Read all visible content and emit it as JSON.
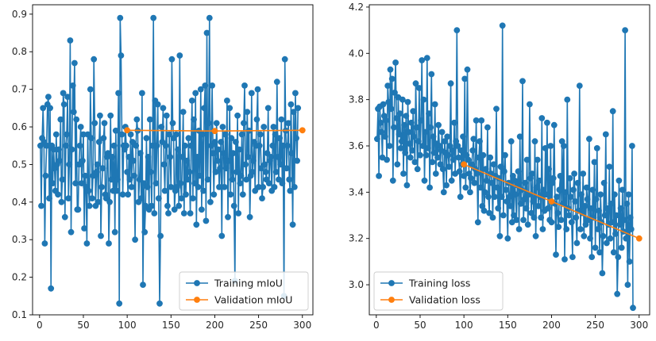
{
  "chart_data": [
    {
      "type": "line",
      "xlim": [
        -8,
        312
      ],
      "ylim": [
        0.1,
        0.925
      ],
      "xticks": [
        0,
        50,
        100,
        150,
        200,
        250,
        300
      ],
      "yticks": [
        0.1,
        0.2,
        0.3,
        0.4,
        0.5,
        0.6,
        0.7,
        0.8,
        0.9
      ],
      "ytick_decimals": 1,
      "grid": false,
      "legend_position": "lower-right",
      "series": [
        {
          "name": "Training mIoU",
          "color": "#1f77b4",
          "marker": "circle",
          "x_start": 1,
          "x_step": 1,
          "values": [
            0.55,
            0.39,
            0.57,
            0.65,
            0.56,
            0.29,
            0.47,
            0.55,
            0.66,
            0.68,
            0.41,
            0.65,
            0.17,
            0.55,
            0.45,
            0.54,
            0.49,
            0.43,
            0.58,
            0.5,
            0.42,
            0.54,
            0.51,
            0.62,
            0.4,
            0.46,
            0.69,
            0.66,
            0.36,
            0.55,
            0.58,
            0.68,
            0.41,
            0.5,
            0.83,
            0.32,
            0.54,
            0.71,
            0.64,
            0.77,
            0.45,
            0.62,
            0.38,
            0.38,
            0.5,
            0.55,
            0.6,
            0.45,
            0.51,
            0.58,
            0.33,
            0.47,
            0.44,
            0.29,
            0.58,
            0.43,
            0.39,
            0.7,
            0.57,
            0.41,
            0.47,
            0.78,
            0.61,
            0.39,
            0.48,
            0.5,
            0.4,
            0.56,
            0.63,
            0.31,
            0.44,
            0.49,
            0.57,
            0.61,
            0.42,
            0.41,
            0.52,
            0.53,
            0.29,
            0.4,
            0.63,
            0.46,
            0.52,
            0.43,
            0.55,
            0.32,
            0.59,
            0.43,
            0.46,
            0.69,
            0.13,
            0.89,
            0.79,
            0.58,
            0.42,
            0.55,
            0.54,
            0.6,
            0.55,
            0.48,
            0.42,
            0.52,
            0.46,
            0.58,
            0.44,
            0.56,
            0.51,
            0.47,
            0.3,
            0.55,
            0.62,
            0.59,
            0.4,
            0.46,
            0.53,
            0.41,
            0.69,
            0.18,
            0.45,
            0.32,
            0.39,
            0.57,
            0.44,
            0.52,
            0.38,
            0.62,
            0.48,
            0.39,
            0.55,
            0.89,
            0.37,
            0.67,
            0.45,
            0.55,
            0.66,
            0.41,
            0.13,
            0.31,
            0.6,
            0.56,
            0.65,
            0.5,
            0.43,
            0.55,
            0.63,
            0.39,
            0.37,
            0.58,
            0.52,
            0.44,
            0.78,
            0.61,
            0.57,
            0.38,
            0.43,
            0.58,
            0.44,
            0.54,
            0.39,
            0.79,
            0.45,
            0.41,
            0.52,
            0.64,
            0.37,
            0.55,
            0.42,
            0.51,
            0.46,
            0.57,
            0.48,
            0.37,
            0.55,
            0.67,
            0.41,
            0.62,
            0.45,
            0.69,
            0.34,
            0.52,
            0.44,
            0.59,
            0.47,
            0.7,
            0.38,
            0.58,
            0.43,
            0.65,
            0.71,
            0.35,
            0.85,
            0.46,
            0.61,
            0.89,
            0.4,
            0.55,
            0.71,
            0.53,
            0.42,
            0.56,
            0.48,
            0.61,
            0.51,
            0.54,
            0.44,
            0.49,
            0.56,
            0.31,
            0.6,
            0.53,
            0.44,
            0.58,
            0.49,
            0.67,
            0.36,
            0.51,
            0.65,
            0.42,
            0.57,
            0.46,
            0.53,
            0.39,
            0.19,
            0.56,
            0.48,
            0.63,
            0.37,
            0.54,
            0.45,
            0.47,
            0.58,
            0.42,
            0.61,
            0.71,
            0.5,
            0.46,
            0.64,
            0.52,
            0.59,
            0.36,
            0.47,
            0.69,
            0.48,
            0.51,
            0.56,
            0.43,
            0.55,
            0.62,
            0.7,
            0.44,
            0.55,
            0.58,
            0.49,
            0.41,
            0.44,
            0.6,
            0.5,
            0.48,
            0.46,
            0.53,
            0.65,
            0.45,
            0.51,
            0.52,
            0.43,
            0.55,
            0.6,
            0.44,
            0.58,
            0.48,
            0.72,
            0.52,
            0.46,
            0.57,
            0.5,
            0.62,
            0.45,
            0.55,
            0.15,
            0.78,
            0.59,
            0.49,
            0.55,
            0.61,
            0.46,
            0.43,
            0.66,
            0.53,
            0.34,
            0.64,
            0.44,
            0.69,
            0.57,
            0.51,
            0.65
          ]
        },
        {
          "name": "Validation mIoU",
          "color": "#ff7f0e",
          "marker": "circle",
          "x": [
            100,
            200,
            300
          ],
          "values": [
            0.591,
            0.589,
            0.591
          ]
        }
      ]
    },
    {
      "type": "line",
      "xlim": [
        -8,
        312
      ],
      "ylim": [
        2.87,
        4.21
      ],
      "xticks": [
        0,
        50,
        100,
        150,
        200,
        250,
        300
      ],
      "yticks": [
        3.0,
        3.2,
        3.4,
        3.6,
        3.8,
        4.0,
        4.2
      ],
      "ytick_decimals": 1,
      "grid": false,
      "legend_position": "lower-left",
      "series": [
        {
          "name": "Training loss",
          "color": "#1f77b4",
          "marker": "circle",
          "x_start": 1,
          "x_step": 1,
          "values": [
            3.63,
            3.76,
            3.47,
            3.77,
            3.7,
            3.66,
            3.55,
            3.78,
            3.73,
            3.64,
            3.71,
            3.54,
            3.86,
            3.79,
            3.6,
            3.93,
            3.76,
            3.89,
            3.45,
            3.68,
            3.83,
            3.96,
            3.72,
            3.52,
            3.81,
            3.65,
            3.74,
            3.59,
            3.62,
            3.8,
            3.48,
            3.69,
            3.57,
            3.73,
            3.43,
            3.79,
            3.66,
            3.61,
            3.55,
            3.7,
            3.58,
            3.75,
            3.64,
            3.53,
            3.87,
            3.68,
            3.5,
            3.62,
            3.85,
            3.56,
            3.71,
            3.97,
            3.6,
            3.8,
            3.45,
            3.66,
            3.56,
            3.98,
            3.59,
            3.74,
            3.42,
            3.68,
            3.91,
            3.53,
            3.64,
            3.57,
            3.78,
            3.48,
            3.61,
            3.55,
            3.69,
            3.6,
            3.52,
            3.58,
            3.66,
            3.5,
            3.4,
            3.62,
            3.57,
            3.43,
            3.64,
            3.56,
            3.51,
            3.6,
            3.87,
            3.45,
            3.58,
            3.54,
            3.7,
            3.48,
            3.62,
            4.1,
            3.6,
            3.55,
            3.49,
            3.38,
            3.58,
            3.52,
            3.64,
            3.47,
            3.89,
            3.42,
            3.56,
            3.93,
            3.54,
            3.48,
            3.4,
            3.46,
            3.52,
            3.58,
            3.63,
            3.44,
            3.5,
            3.71,
            3.48,
            3.27,
            3.55,
            3.62,
            3.42,
            3.71,
            3.34,
            3.56,
            3.32,
            3.4,
            3.5,
            3.45,
            3.68,
            3.38,
            3.31,
            3.55,
            3.48,
            3.44,
            3.29,
            3.52,
            3.38,
            3.47,
            3.76,
            3.42,
            3.33,
            3.46,
            3.21,
            3.51,
            3.38,
            4.12,
            3.3,
            3.49,
            3.56,
            3.41,
            3.36,
            3.2,
            3.44,
            3.38,
            3.34,
            3.62,
            3.27,
            3.47,
            3.3,
            3.45,
            3.39,
            3.28,
            3.43,
            3.49,
            3.24,
            3.64,
            3.35,
            3.41,
            3.88,
            3.28,
            3.37,
            3.44,
            3.33,
            3.54,
            3.26,
            3.39,
            3.78,
            3.46,
            3.31,
            3.48,
            3.36,
            3.29,
            3.62,
            3.21,
            3.42,
            3.54,
            3.34,
            3.45,
            3.38,
            3.29,
            3.72,
            3.24,
            3.41,
            3.32,
            3.59,
            3.39,
            3.7,
            3.33,
            3.5,
            3.28,
            3.6,
            3.27,
            3.44,
            3.46,
            3.69,
            3.35,
            3.13,
            3.38,
            3.31,
            3.25,
            3.41,
            3.47,
            3.28,
            3.62,
            3.35,
            3.6,
            3.11,
            3.4,
            3.24,
            3.8,
            3.33,
            3.3,
            3.46,
            3.38,
            3.27,
            3.12,
            3.41,
            3.48,
            3.36,
            3.29,
            3.18,
            3.44,
            3.32,
            3.86,
            3.24,
            3.39,
            3.31,
            3.48,
            3.21,
            3.34,
            3.26,
            3.42,
            3.37,
            3.28,
            3.63,
            3.2,
            3.33,
            3.12,
            3.41,
            3.29,
            3.53,
            3.16,
            3.37,
            3.59,
            3.24,
            3.32,
            3.14,
            3.39,
            3.27,
            3.05,
            3.21,
            3.44,
            3.3,
            3.65,
            3.18,
            3.33,
            3.26,
            3.51,
            3.2,
            3.35,
            3.27,
            3.75,
            3.14,
            3.39,
            3.22,
            3.3,
            2.96,
            3.12,
            3.45,
            3.26,
            3.33,
            3.16,
            3.41,
            3.23,
            3.28,
            4.1,
            3.2,
            3.35,
            3.0,
            3.39,
            3.1,
            3.29,
            3.24,
            3.6,
            2.9
          ]
        },
        {
          "name": "Validation loss",
          "color": "#ff7f0e",
          "marker": "circle",
          "x": [
            100,
            200,
            300
          ],
          "values": [
            3.52,
            3.36,
            3.2
          ]
        }
      ]
    }
  ]
}
